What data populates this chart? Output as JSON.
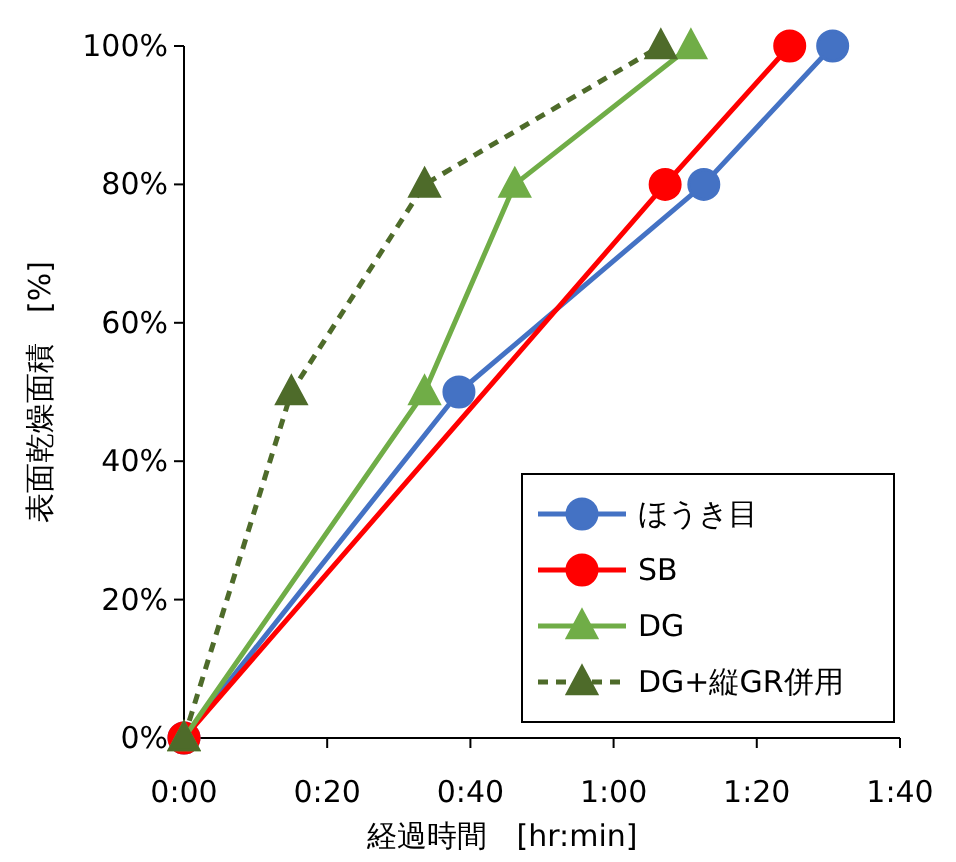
{
  "chart_data": {
    "type": "line",
    "xlabel": "経過時間　[hr:min]",
    "ylabel": "表面乾燥面積　[%]",
    "xlim": [
      0,
      1.6667
    ],
    "xticks": [
      {
        "value": 0,
        "label": "0:00"
      },
      {
        "value": 0.3333,
        "label": "0:20"
      },
      {
        "value": 0.6667,
        "label": "0:40"
      },
      {
        "value": 1,
        "label": "1:00"
      },
      {
        "value": 1.3333,
        "label": "1:20"
      },
      {
        "value": 1.6667,
        "label": "1:40"
      }
    ],
    "ylim": [
      0,
      100
    ],
    "yticks": [
      {
        "value": 0,
        "label": "0%"
      },
      {
        "value": 20,
        "label": "20%"
      },
      {
        "value": 40,
        "label": "40%"
      },
      {
        "value": 60,
        "label": "60%"
      },
      {
        "value": 80,
        "label": "80%"
      },
      {
        "value": 100,
        "label": "100%"
      }
    ],
    "grid": false,
    "legend": "bottom right",
    "series": [
      {
        "name": "ほうき目",
        "color": "#4472c4",
        "x": [
          0,
          0.64,
          1.21,
          1.51
        ],
        "values": [
          0,
          50,
          80,
          100
        ],
        "marker": "circle",
        "line_style": "solid"
      },
      {
        "name": "SB",
        "color": "#ff0000",
        "x": [
          0,
          1.12,
          1.41
        ],
        "values": [
          0,
          80,
          100
        ],
        "marker": "circle",
        "line_style": "solid"
      },
      {
        "name": "DG",
        "color": "#70ad47",
        "x": [
          0,
          0.56,
          0.77,
          1.18
        ],
        "values": [
          0,
          50,
          80,
          100
        ],
        "marker": "triangle",
        "line_style": "solid"
      },
      {
        "name": "DG+縦GR併用",
        "color": "#4e6b2a",
        "x": [
          0,
          0.25,
          0.56,
          1.11
        ],
        "values": [
          0,
          50,
          80,
          100
        ],
        "marker": "triangle",
        "line_style": "dashed"
      }
    ]
  }
}
